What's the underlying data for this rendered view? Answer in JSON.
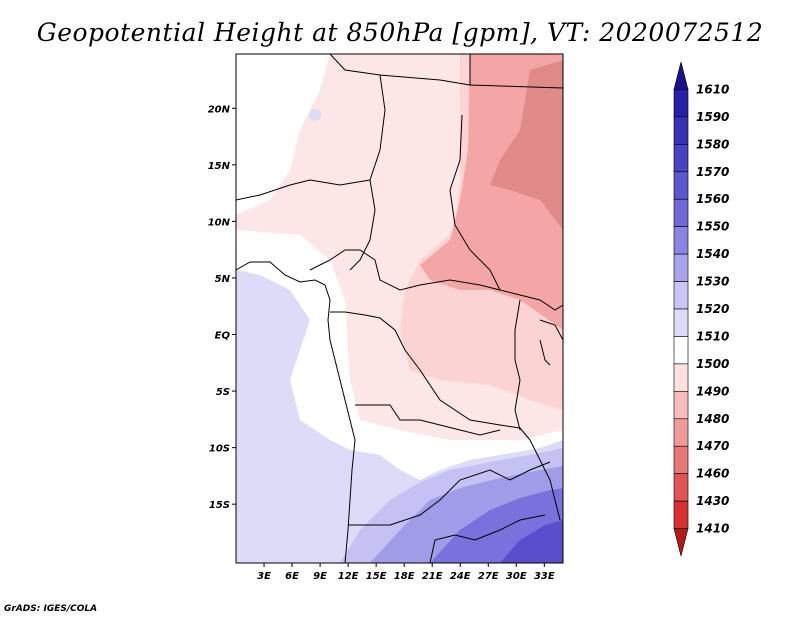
{
  "title": "Geopotential Height at 850hPa [gpm], VT: 2020072512",
  "credit": "GrADS: IGES/COLA",
  "lat_labels": [
    "20N",
    "15N",
    "10N",
    "5N",
    "EQ",
    "5S",
    "10S",
    "15S"
  ],
  "lat_values": [
    20,
    15,
    10,
    5,
    0,
    -5,
    -10,
    -15
  ],
  "lon_labels": [
    "3E",
    "6E",
    "9E",
    "12E",
    "15E",
    "18E",
    "21E",
    "24E",
    "27E",
    "30E",
    "33E"
  ],
  "lon_values": [
    3,
    6,
    9,
    12,
    15,
    18,
    21,
    24,
    27,
    30,
    33
  ],
  "colorbar": {
    "levels": [
      "1610",
      "1590",
      "1580",
      "1570",
      "1560",
      "1550",
      "1540",
      "1530",
      "1520",
      "1510",
      "1500",
      "1490",
      "1480",
      "1470",
      "1460",
      "1430",
      "1410"
    ],
    "colors": [
      "#1a0f8f",
      "#2a1fa8",
      "#3a30b8",
      "#4a42c4",
      "#5c56cf",
      "#7068d8",
      "#8a84e2",
      "#a8a4ec",
      "#c8c6f4",
      "#dcdcf8",
      "#ffffff",
      "#fde0e0",
      "#f8bcbc",
      "#f09a9a",
      "#e87878",
      "#e05454",
      "#d83030",
      "#b81a1a"
    ]
  },
  "map_colors": {
    "low_red_dark": "#e08a8a",
    "red_mid": "#f4a6a6",
    "red_light": "#fbd3d3",
    "pink_pale": "#fde6e6",
    "white": "#ffffff",
    "blue_pale": "#dcdcf8",
    "blue_light": "#c4c2f2",
    "blue_mid": "#a09ce8",
    "blue_deep": "#7a72dc",
    "blue_dark": "#5a4ecc"
  }
}
